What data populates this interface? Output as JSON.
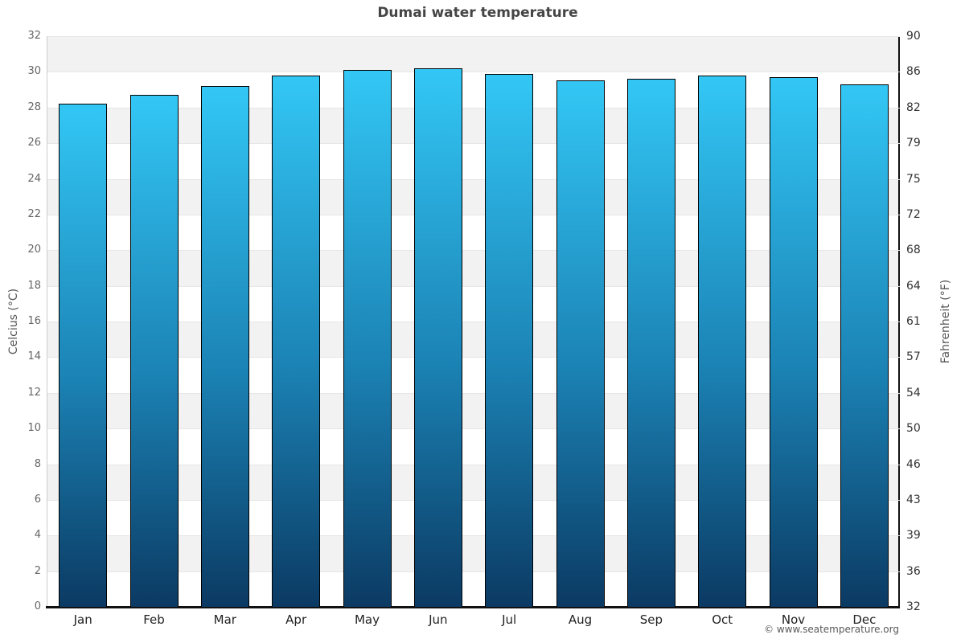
{
  "title": "Dumai water temperature",
  "footer": {
    "text": "© www.seatemperature.org"
  },
  "axes": {
    "left_title": "Celcius (°C)",
    "right_title": "Fahrenheit (°F)"
  },
  "chart_data": {
    "type": "bar",
    "title": "Dumai water temperature",
    "categories": [
      "Jan",
      "Feb",
      "Mar",
      "Apr",
      "May",
      "Jun",
      "Jul",
      "Aug",
      "Sep",
      "Oct",
      "Nov",
      "Dec"
    ],
    "values": [
      28.2,
      28.7,
      29.2,
      29.8,
      30.1,
      30.2,
      29.9,
      29.5,
      29.6,
      29.8,
      29.7,
      29.3
    ],
    "ylabel_left": "Celcius (°C)",
    "ylabel_right": "Fahrenheit (°F)",
    "ylim": [
      0,
      32
    ],
    "y_ticks_celsius": [
      32,
      30,
      28,
      26,
      24,
      22,
      20,
      18,
      16,
      14,
      12,
      10,
      8,
      6,
      4,
      2,
      0
    ],
    "y_ticks_fahrenheit": [
      90,
      86,
      82,
      79,
      75,
      72,
      68,
      64,
      61,
      57,
      54,
      50,
      46,
      43,
      39,
      36,
      32
    ],
    "grid": "alternating-bands",
    "band_color": "#f2f2f2",
    "gridline_color": "#e6e6e6",
    "bar_color_top": "#33c7f5",
    "bar_color_bottom": "#0b3a63",
    "bar_border_color": "#000000",
    "legend": "none"
  }
}
